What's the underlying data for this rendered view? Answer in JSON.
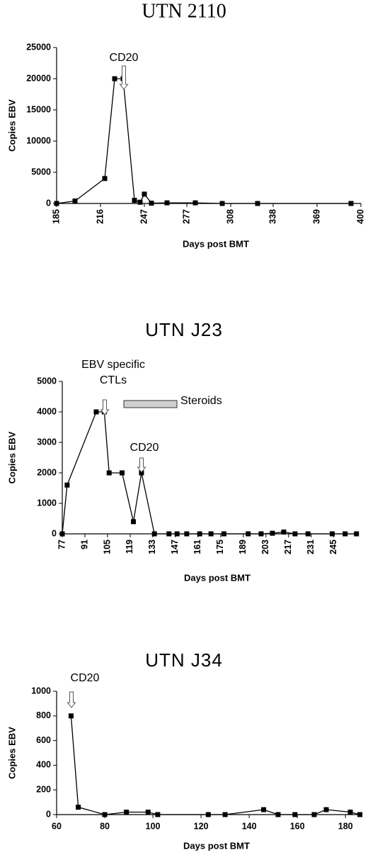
{
  "chart_data": [
    {
      "type": "line",
      "title": "UTN 2110",
      "y_label": "Copies EBV",
      "x_label": "Days post BMT",
      "annotations": [
        "CD20"
      ],
      "color": "#000000",
      "x": [
        185,
        198,
        219,
        226,
        232,
        240,
        244,
        247,
        252,
        263,
        283,
        302,
        327,
        393
      ],
      "values": [
        0,
        400,
        4000,
        20000,
        20000,
        500,
        200,
        1500,
        50,
        100,
        100,
        0,
        0,
        0
      ],
      "xlim": [
        185,
        400
      ],
      "xticks": [
        185,
        216,
        247,
        277,
        308,
        338,
        369,
        400
      ],
      "ylim": [
        0,
        25000
      ],
      "yticks": [
        0,
        5000,
        10000,
        15000,
        20000,
        25000
      ]
    },
    {
      "type": "line",
      "title": "UTN J23",
      "y_label": "Copies EBV",
      "x_label": "Days post BMT",
      "annotations": [
        "EBV specific",
        "CTLs",
        "Steroids",
        "CD20"
      ],
      "color": "#000000",
      "x": [
        77,
        80,
        98,
        103,
        106,
        114,
        121,
        126,
        134,
        143,
        148,
        154,
        162,
        169,
        177,
        192,
        200,
        207,
        214,
        221,
        229,
        244,
        252,
        259
      ],
      "values": [
        0,
        1600,
        4000,
        4000,
        2000,
        2000,
        400,
        2000,
        0,
        0,
        0,
        0,
        0,
        0,
        0,
        0,
        0,
        20,
        60,
        0,
        0,
        0,
        0,
        0
      ],
      "xlim": [
        77,
        260
      ],
      "xticks": [
        77,
        91,
        105,
        119,
        133,
        147,
        161,
        175,
        189,
        203,
        217,
        231,
        245
      ],
      "ylim": [
        0,
        5000
      ],
      "yticks": [
        0,
        1000,
        2000,
        3000,
        4000,
        5000
      ]
    },
    {
      "type": "line",
      "title": "UTN J34",
      "y_label": "Copies EBV",
      "x_label": "Days post BMT",
      "annotations": [
        "CD20"
      ],
      "color": "#000000",
      "x": [
        66,
        69,
        80,
        89,
        98,
        102,
        123,
        130,
        146,
        152,
        159,
        167,
        172,
        182,
        186
      ],
      "values": [
        800,
        60,
        0,
        20,
        20,
        0,
        0,
        0,
        40,
        0,
        0,
        0,
        40,
        20,
        0
      ],
      "xlim": [
        60,
        187
      ],
      "xticks": [
        60,
        80,
        100,
        120,
        140,
        160,
        180
      ],
      "ylim": [
        0,
        1000
      ],
      "yticks": [
        0,
        200,
        400,
        600,
        800,
        1000
      ]
    }
  ]
}
